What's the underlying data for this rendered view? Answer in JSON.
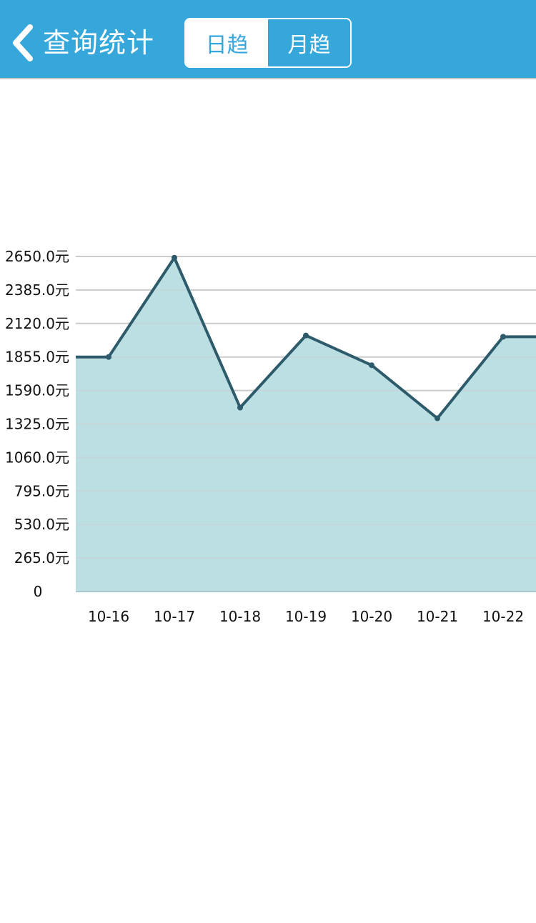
{
  "header": {
    "back_icon": "chevron-left-icon",
    "title": "查询统计",
    "tabs": [
      {
        "label": "日趋",
        "active": true
      },
      {
        "label": "月趋",
        "active": false
      }
    ],
    "colors": {
      "bar": "#36a7db",
      "text": "#ffffff"
    }
  },
  "chart_data": {
    "type": "area",
    "categories": [
      "10-16",
      "10-17",
      "10-18",
      "10-19",
      "10-20",
      "10-21",
      "10-22"
    ],
    "series": [
      {
        "values": [
          1855,
          2640,
          1455,
          2025,
          1790,
          1370,
          2015
        ]
      }
    ],
    "y_ticks": [
      "0",
      "265.0元",
      "530.0元",
      "795.0元",
      "1060.0元",
      "1325.0元",
      "1590.0元",
      "1855.0元",
      "2120.0元",
      "2385.0元",
      "2650.0元"
    ],
    "ylim": [
      0,
      2650
    ],
    "grid": true,
    "colors": {
      "line": "#2e5b6b",
      "fill": "#bcdfe4",
      "grid_light": "#cccccc",
      "grid_dark": "#a8c8cd"
    }
  }
}
